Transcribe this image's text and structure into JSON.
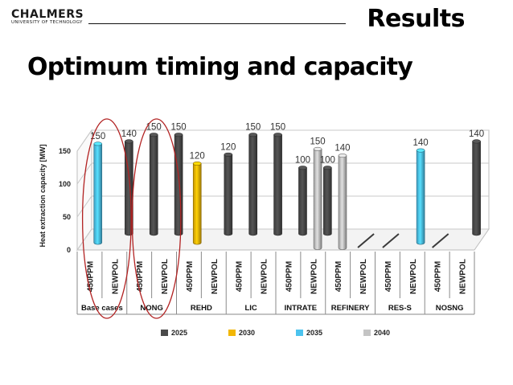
{
  "header": {
    "logo_main": "CHALMERS",
    "logo_sub": "UNIVERSITY OF TECHNOLOGY",
    "section_title": "Results",
    "subtitle": "Optimum timing and capacity"
  },
  "colors": {
    "2025": "#4a4a4a",
    "2030": "#f2b705",
    "2035": "#4cc3ee",
    "2040": "#c4c4c4",
    "circle": "#b22222"
  },
  "chart_data": {
    "type": "bar",
    "ylabel": "Heat extraction capacity [MW]",
    "ylim": [
      0,
      150
    ],
    "yticks": [
      0,
      50,
      100,
      150
    ],
    "grid": true,
    "legend_position": "bottom",
    "legend": [
      "2025",
      "2030",
      "2035",
      "2040"
    ],
    "groups": [
      {
        "name": "Base cases",
        "categories": [
          "450PPM",
          "NEWPOL"
        ]
      },
      {
        "name": "NONG",
        "categories": [
          "450PPM",
          "NEWPOL"
        ]
      },
      {
        "name": "REHD",
        "categories": [
          "450PPM",
          "NEWPOL"
        ]
      },
      {
        "name": "LIC",
        "categories": [
          "450PPM",
          "NEWPOL"
        ]
      },
      {
        "name": "INTRATE",
        "categories": [
          "450PPM",
          "NEWPOL"
        ]
      },
      {
        "name": "REFINERY",
        "categories": [
          "450PPM",
          "NEWPOL"
        ]
      },
      {
        "name": "RES-S",
        "categories": [
          "450PPM",
          "NEWPOL"
        ]
      },
      {
        "name": "NOSNG",
        "categories": [
          "450PPM",
          "NEWPOL"
        ]
      }
    ],
    "bars": [
      {
        "group": "Base cases",
        "category": "450PPM",
        "year": "2035",
        "value": 150,
        "label": "150"
      },
      {
        "group": "Base cases",
        "category": "NEWPOL",
        "year": "2025",
        "value": 140,
        "label": "140"
      },
      {
        "group": "NONG",
        "category": "450PPM",
        "year": "2025",
        "value": 150,
        "label": "150"
      },
      {
        "group": "NONG",
        "category": "NEWPOL",
        "year": "2025",
        "value": 150,
        "label": "150"
      },
      {
        "group": "REHD",
        "category": "450PPM",
        "year": "2030",
        "value": 120,
        "label": "120"
      },
      {
        "group": "REHD",
        "category": "NEWPOL",
        "year": "2025",
        "value": 120,
        "label": "120"
      },
      {
        "group": "LIC",
        "category": "450PPM",
        "year": "2025",
        "value": 150,
        "label": "150"
      },
      {
        "group": "LIC",
        "category": "NEWPOL",
        "year": "2025",
        "value": 150,
        "label": "150"
      },
      {
        "group": "INTRATE",
        "category": "450PPM",
        "year": "2025",
        "value": 100,
        "label": "100"
      },
      {
        "group": "INTRATE",
        "category": "NEWPOL",
        "year": "2025",
        "value": 100,
        "label": "100"
      },
      {
        "group": "INTRATE",
        "category": "NEWPOL",
        "year": "2040",
        "value": 150,
        "label": "150"
      },
      {
        "group": "REFINERY",
        "category": "450PPM",
        "year": "2040",
        "value": 140,
        "label": "140"
      },
      {
        "group": "RES-S",
        "category": "NEWPOL",
        "year": "2035",
        "value": 140,
        "label": "140"
      },
      {
        "group": "NOSNG",
        "category": "NEWPOL",
        "year": "2025",
        "value": 140,
        "label": "140"
      }
    ],
    "highlighted_groups": [
      "Base cases",
      "NONG"
    ]
  }
}
